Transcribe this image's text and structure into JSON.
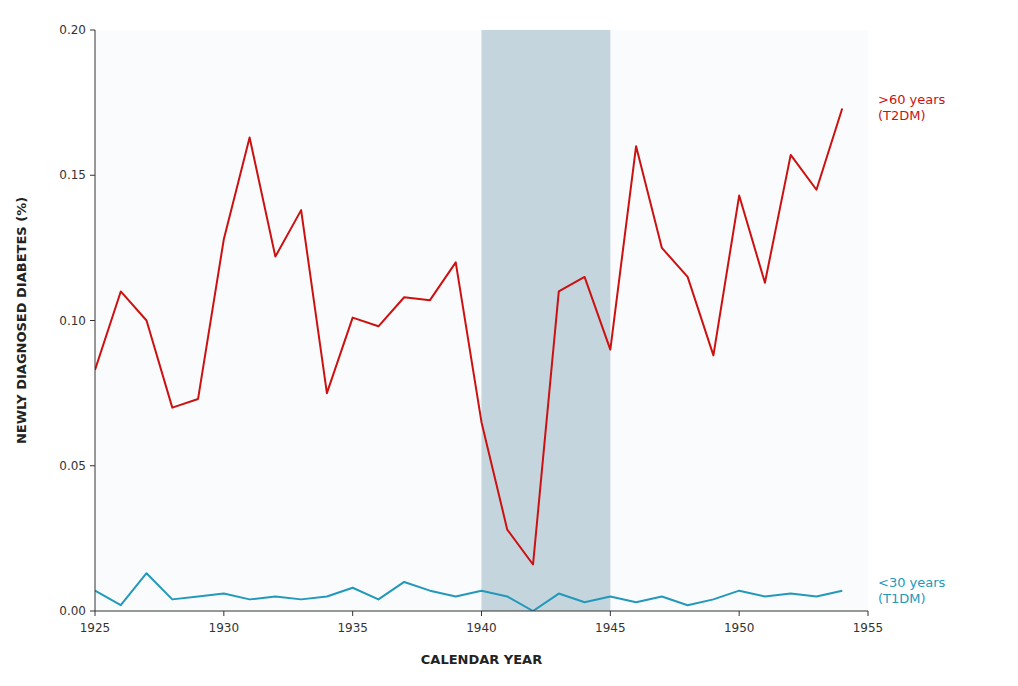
{
  "chart_data": {
    "type": "line",
    "x_label": "CALENDAR YEAR",
    "y_label": "NEWLY DIAGNOSED DIABETES (%)",
    "x": [
      1925,
      1926,
      1927,
      1928,
      1929,
      1930,
      1931,
      1932,
      1933,
      1934,
      1935,
      1936,
      1937,
      1938,
      1939,
      1940,
      1941,
      1942,
      1943,
      1944,
      1945,
      1946,
      1947,
      1948,
      1949,
      1950,
      1951,
      1952,
      1953,
      1954
    ],
    "series": [
      {
        "color": "#cc1111",
        "values": [
          0.083,
          0.11,
          0.1,
          0.07,
          0.073,
          0.128,
          0.163,
          0.122,
          0.138,
          0.075,
          0.101,
          0.098,
          0.108,
          0.107,
          0.12,
          0.065,
          0.028,
          0.016,
          0.11,
          0.115,
          0.09,
          0.16,
          0.125,
          0.115,
          0.088,
          0.143,
          0.113,
          0.157,
          0.145,
          0.173
        ]
      },
      {
        "color": "#2299bb",
        "values": [
          0.007,
          0.002,
          0.013,
          0.004,
          0.005,
          0.006,
          0.004,
          0.005,
          0.004,
          0.005,
          0.008,
          0.004,
          0.01,
          0.007,
          0.005,
          0.007,
          0.005,
          0.0,
          0.006,
          0.003,
          0.005,
          0.003,
          0.005,
          0.002,
          0.004,
          0.007,
          0.005,
          0.006,
          0.005,
          0.007
        ]
      }
    ],
    "annotations": [
      {
        "lines": [
          ">60 years",
          "(T2DM)"
        ],
        "series": 0
      },
      {
        "lines": [
          "<30 years",
          "(T1DM)"
        ],
        "series": 1
      }
    ],
    "spans": [
      {
        "x0": 1940,
        "x1": 1945,
        "color": "#8fafc0"
      }
    ],
    "xlim": [
      1925,
      1955
    ],
    "ylim": [
      0.0,
      0.2
    ],
    "xticks": [
      1925,
      1930,
      1935,
      1940,
      1945,
      1950,
      1955
    ],
    "yticks": [
      {
        "value": 0.0,
        "label": "0.00"
      },
      0.05,
      {
        "value": 0.1,
        "label": "0.10"
      },
      0.15,
      {
        "value": 0.2,
        "label": "0.20"
      }
    ],
    "grid": false
  }
}
